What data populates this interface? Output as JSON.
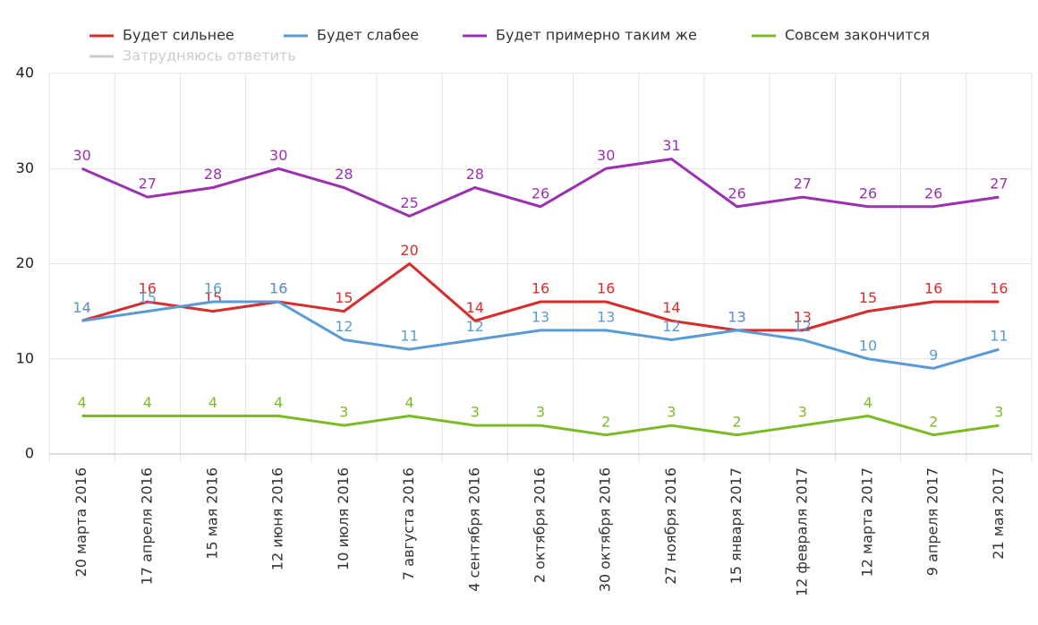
{
  "chart_data": {
    "type": "line",
    "categories": [
      "20 марта 2016",
      "17 апреля 2016",
      "15 мая 2016",
      "12 июня 2016",
      "10 июля 2016",
      "7 августа 2016",
      "4 сентября 2016",
      "2 октября 2016",
      "30 октября 2016",
      "27 ноября 2016",
      "15 января 2017",
      "12 февраля 2017",
      "12 марта 2017",
      "9 апреля 2017",
      "21 мая 2017"
    ],
    "series": [
      {
        "name": "Будет сильнее",
        "color": "#d62d2d",
        "values": [
          14,
          16,
          15,
          16,
          15,
          20,
          14,
          16,
          16,
          14,
          13,
          13,
          15,
          16,
          16
        ]
      },
      {
        "name": "Будет слабее",
        "color": "#5b9bd5",
        "values": [
          14,
          15,
          16,
          16,
          12,
          11,
          12,
          13,
          13,
          12,
          13,
          12,
          10,
          9,
          11
        ]
      },
      {
        "name": "Будет примерно таким же",
        "color": "#9b30b0",
        "values": [
          30,
          27,
          28,
          30,
          28,
          25,
          28,
          26,
          30,
          31,
          26,
          27,
          26,
          26,
          27
        ]
      },
      {
        "name": "Совсем закончится",
        "color": "#7cbb25",
        "values": [
          4,
          4,
          4,
          4,
          3,
          4,
          3,
          3,
          2,
          3,
          2,
          3,
          4,
          2,
          3
        ]
      },
      {
        "name": "Затрудняюсь ответить",
        "color": "#cccccc",
        "visible": false,
        "values": [
          null,
          null,
          null,
          null,
          null,
          null,
          null,
          null,
          null,
          null,
          null,
          null,
          null,
          null,
          null
        ]
      }
    ],
    "ylim": [
      0,
      40
    ],
    "yticks": [
      0,
      10,
      20,
      30,
      40
    ],
    "grid": true,
    "legend": "top"
  }
}
